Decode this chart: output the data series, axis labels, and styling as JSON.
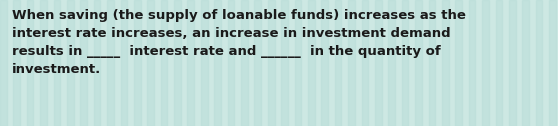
{
  "text": "When saving (the supply of loanable funds) increases as the\ninterest rate increases, an increase in investment demand\nresults in _____  interest rate and ______  in the quantity of\ninvestment.",
  "background_color": "#cde8e3",
  "stripe_color": "#b8ddd8",
  "text_color": "#1a1a1a",
  "font_size": 9.5,
  "fig_width": 5.58,
  "fig_height": 1.26,
  "dpi": 100
}
